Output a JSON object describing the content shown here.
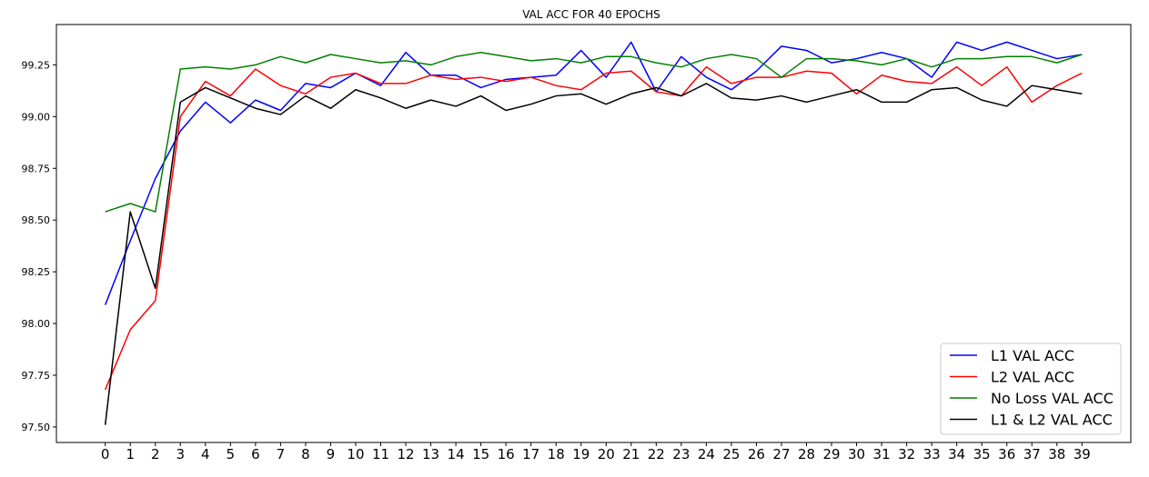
{
  "chart_data": {
    "type": "line",
    "title": "VAL ACC FOR 40 EPOCHS",
    "xlabel": "",
    "ylabel": "",
    "x": [
      0,
      1,
      2,
      3,
      4,
      5,
      6,
      7,
      8,
      9,
      10,
      11,
      12,
      13,
      14,
      15,
      16,
      17,
      18,
      19,
      20,
      21,
      22,
      23,
      24,
      25,
      26,
      27,
      28,
      29,
      30,
      31,
      32,
      33,
      34,
      35,
      36,
      37,
      38,
      39
    ],
    "xlim": [
      -1.95,
      40.95
    ],
    "ylim": [
      97.425,
      99.445
    ],
    "yticks": [
      "97.50",
      "97.75",
      "98.00",
      "98.25",
      "98.50",
      "98.75",
      "99.00",
      "99.25"
    ],
    "xticks": [
      "0",
      "1",
      "2",
      "3",
      "4",
      "5",
      "6",
      "7",
      "8",
      "9",
      "10",
      "11",
      "12",
      "13",
      "14",
      "15",
      "16",
      "17",
      "18",
      "19",
      "20",
      "21",
      "22",
      "23",
      "24",
      "25",
      "26",
      "27",
      "28",
      "29",
      "30",
      "31",
      "32",
      "33",
      "34",
      "35",
      "36",
      "37",
      "38",
      "39"
    ],
    "grid": false,
    "legend_position": "bottom-right",
    "series": [
      {
        "name": "L1 VAL ACC",
        "color": "#0000ff",
        "values": [
          98.09,
          98.4,
          98.7,
          98.93,
          99.07,
          98.97,
          99.08,
          99.03,
          99.16,
          99.14,
          99.21,
          99.15,
          99.31,
          99.2,
          99.2,
          99.14,
          99.18,
          99.19,
          99.2,
          99.32,
          99.19,
          99.36,
          99.12,
          99.29,
          99.19,
          99.13,
          99.22,
          99.34,
          99.32,
          99.26,
          99.28,
          99.31,
          99.28,
          99.19,
          99.36,
          99.32,
          99.36,
          99.32,
          99.28,
          99.3
        ]
      },
      {
        "name": "L2 VAL ACC",
        "color": "#ff0000",
        "values": [
          97.68,
          97.97,
          98.11,
          99.0,
          99.17,
          99.1,
          99.23,
          99.15,
          99.11,
          99.19,
          99.21,
          99.16,
          99.16,
          99.2,
          99.18,
          99.19,
          99.17,
          99.19,
          99.15,
          99.13,
          99.21,
          99.22,
          99.12,
          99.1,
          99.24,
          99.16,
          99.19,
          99.19,
          99.22,
          99.21,
          99.11,
          99.2,
          99.17,
          99.16,
          99.24,
          99.15,
          99.24,
          99.07,
          99.15,
          99.21
        ]
      },
      {
        "name": "No Loss VAL ACC",
        "color": "#008000",
        "values": [
          98.54,
          98.58,
          98.54,
          99.23,
          99.24,
          99.23,
          99.25,
          99.29,
          99.26,
          99.3,
          99.28,
          99.26,
          99.27,
          99.25,
          99.29,
          99.31,
          99.29,
          99.27,
          99.28,
          99.26,
          99.29,
          99.29,
          99.26,
          99.24,
          99.28,
          99.3,
          99.28,
          99.19,
          99.28,
          99.28,
          99.27,
          99.25,
          99.28,
          99.24,
          99.28,
          99.28,
          99.29,
          99.29,
          99.26,
          99.3
        ]
      },
      {
        "name": "L1 & L2 VAL ACC",
        "color": "#000000",
        "values": [
          97.51,
          98.54,
          98.17,
          99.07,
          99.14,
          99.09,
          99.04,
          99.01,
          99.1,
          99.04,
          99.13,
          99.09,
          99.04,
          99.08,
          99.05,
          99.1,
          99.03,
          99.06,
          99.1,
          99.11,
          99.06,
          99.11,
          99.14,
          99.1,
          99.16,
          99.09,
          99.08,
          99.1,
          99.07,
          99.1,
          99.13,
          99.07,
          99.07,
          99.13,
          99.14,
          99.08,
          99.05,
          99.15,
          99.13,
          99.11
        ]
      }
    ]
  }
}
